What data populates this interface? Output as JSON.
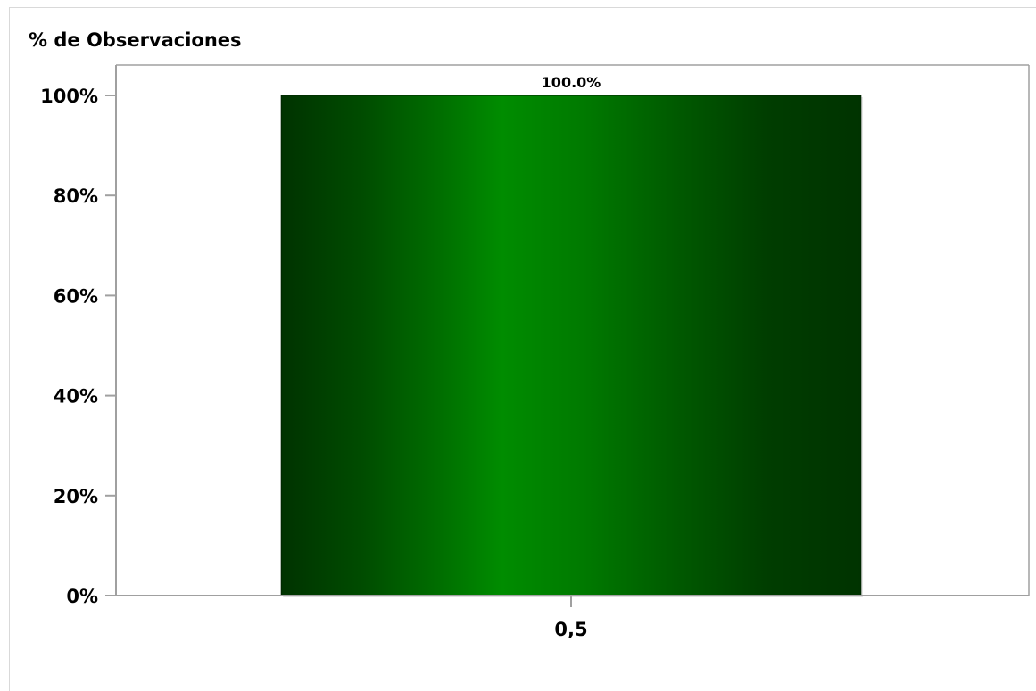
{
  "chart_data": {
    "type": "bar",
    "title": "",
    "xlabel": "",
    "ylabel": "% de Observaciones",
    "categories": [
      "0,5"
    ],
    "values": [
      100.0
    ],
    "data_labels": [
      "100.0%"
    ],
    "ylim": [
      0,
      100
    ],
    "yticks": [
      0,
      20,
      40,
      60,
      80,
      100
    ],
    "ytick_labels": [
      "0%",
      "20%",
      "40%",
      "60%",
      "80%",
      "100%"
    ],
    "grid": false,
    "legend": "none",
    "colors": {
      "bar_dark": "#003300",
      "bar_mid": "#005a00",
      "bar_light": "#008c00",
      "axis": "#a0a0a0"
    }
  }
}
